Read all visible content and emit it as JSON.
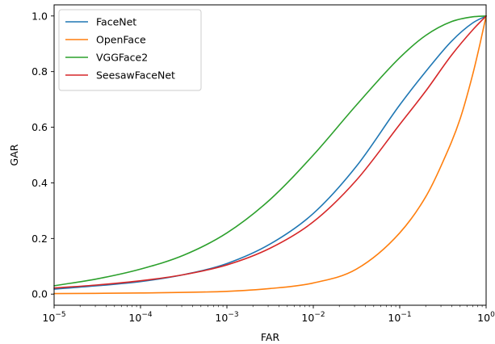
{
  "chart_data": {
    "type": "line",
    "xlabel": "FAR",
    "ylabel": "GAR",
    "xscale": "log",
    "xlim": [
      1e-05,
      1
    ],
    "ylim": [
      -0.04,
      1.04
    ],
    "x_ticks": [
      {
        "value": 1e-05,
        "base": "10",
        "exp": "−5"
      },
      {
        "value": 0.0001,
        "base": "10",
        "exp": "−4"
      },
      {
        "value": 0.001,
        "base": "10",
        "exp": "−3"
      },
      {
        "value": 0.01,
        "base": "10",
        "exp": "−2"
      },
      {
        "value": 0.1,
        "base": "10",
        "exp": "−1"
      },
      {
        "value": 1,
        "base": "10",
        "exp": "0"
      }
    ],
    "y_ticks": [
      {
        "value": 0.0,
        "label": "0.0"
      },
      {
        "value": 0.2,
        "label": "0.2"
      },
      {
        "value": 0.4,
        "label": "0.4"
      },
      {
        "value": 0.6,
        "label": "0.6"
      },
      {
        "value": 0.8,
        "label": "0.8"
      },
      {
        "value": 1.0,
        "label": "1.0"
      }
    ],
    "grid": false,
    "legend": "top-left",
    "series": [
      {
        "name": "FaceNet",
        "color": "#1f77b4",
        "x": [
          1e-05,
          3.16e-05,
          0.0001,
          0.000316,
          0.001,
          0.00316,
          0.01,
          0.0316,
          0.1,
          0.2,
          0.4,
          0.7,
          1
        ],
        "y": [
          0.018,
          0.03,
          0.045,
          0.07,
          0.11,
          0.18,
          0.29,
          0.46,
          0.68,
          0.8,
          0.91,
          0.975,
          1.0
        ]
      },
      {
        "name": "OpenFace",
        "color": "#ff7f0e",
        "x": [
          1e-05,
          0.0001,
          0.001,
          0.00316,
          0.01,
          0.0316,
          0.1,
          0.2,
          0.3,
          0.5,
          0.7,
          0.85,
          1
        ],
        "y": [
          0.002,
          0.004,
          0.01,
          0.02,
          0.04,
          0.09,
          0.22,
          0.35,
          0.46,
          0.63,
          0.79,
          0.9,
          1.0
        ]
      },
      {
        "name": "VGGFace2",
        "color": "#2ca02c",
        "x": [
          1e-05,
          3.16e-05,
          0.0001,
          0.000316,
          0.001,
          0.00316,
          0.01,
          0.0316,
          0.1,
          0.2,
          0.4,
          0.7,
          1
        ],
        "y": [
          0.03,
          0.055,
          0.09,
          0.14,
          0.22,
          0.34,
          0.5,
          0.68,
          0.85,
          0.93,
          0.98,
          0.997,
          1.0
        ]
      },
      {
        "name": "SeesawFaceNet",
        "color": "#d62728",
        "x": [
          1e-05,
          3.16e-05,
          0.0001,
          0.000316,
          0.001,
          0.00316,
          0.01,
          0.0316,
          0.1,
          0.2,
          0.4,
          0.7,
          1
        ],
        "y": [
          0.022,
          0.033,
          0.048,
          0.07,
          0.105,
          0.165,
          0.26,
          0.41,
          0.61,
          0.73,
          0.86,
          0.95,
          1.0
        ]
      }
    ]
  }
}
